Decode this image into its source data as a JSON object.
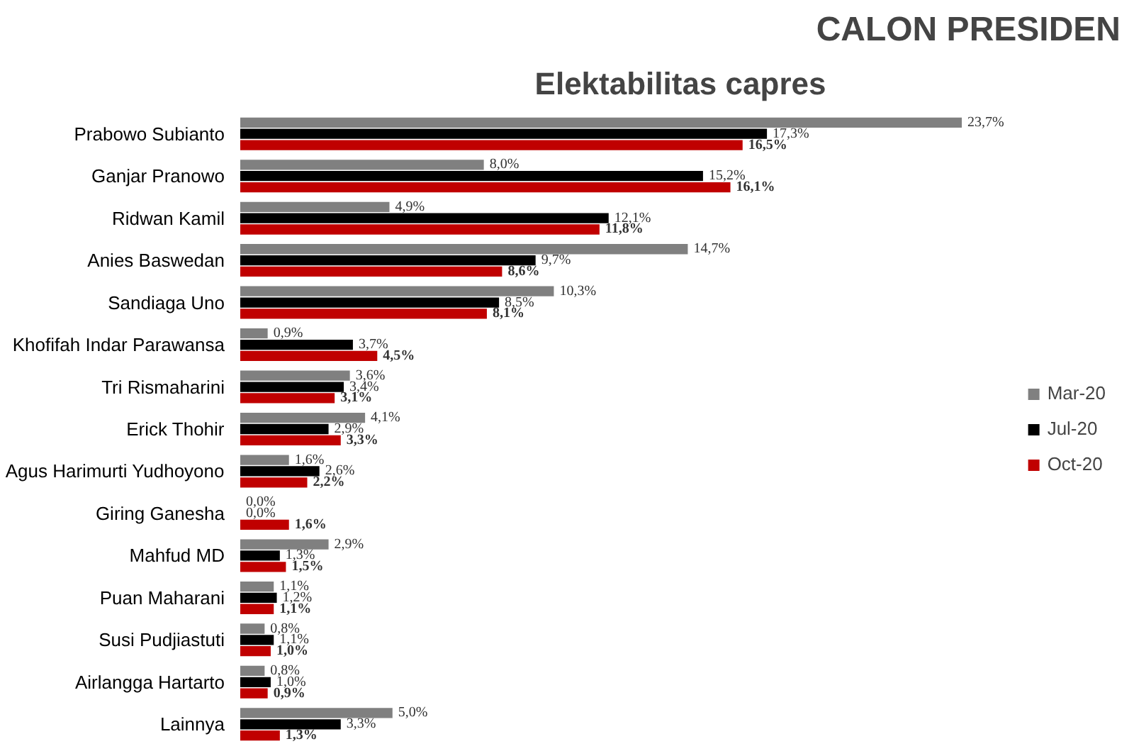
{
  "chart_data": {
    "type": "bar",
    "orientation": "horizontal",
    "title": "CALON PRESIDEN",
    "subtitle": "Elektabilitas capres",
    "categories": [
      "Prabowo Subianto",
      "Ganjar Pranowo",
      "Ridwan Kamil",
      "Anies Baswedan",
      "Sandiaga Uno",
      "Khofifah Indar Parawansa",
      "Tri Rismaharini",
      "Erick Thohir",
      "Agus Harimurti Yudhoyono",
      "Giring Ganesha",
      "Mahfud MD",
      "Puan Maharani",
      "Susi Pudjiastuti",
      "Airlangga Hartarto",
      "Lainnya"
    ],
    "series": [
      {
        "name": "Mar-20",
        "color": "#808080",
        "values": [
          23.7,
          8.0,
          4.9,
          14.7,
          10.3,
          0.9,
          3.6,
          4.1,
          1.6,
          0.0,
          2.9,
          1.1,
          0.8,
          0.8,
          5.0
        ],
        "value_labels": [
          "23,7%",
          "8,0%",
          "4,9%",
          "14,7%",
          "10,3%",
          "0,9%",
          "3,6%",
          "4,1%",
          "1,6%",
          "0,0%",
          "2,9%",
          "1,1%",
          "0,8%",
          "0,8%",
          "5,0%"
        ]
      },
      {
        "name": "Jul-20",
        "color": "#000000",
        "values": [
          17.3,
          15.2,
          12.1,
          9.7,
          8.5,
          3.7,
          3.4,
          2.9,
          2.6,
          0.0,
          1.3,
          1.2,
          1.1,
          1.0,
          3.3
        ],
        "value_labels": [
          "17,3%",
          "15,2%",
          "12,1%",
          "9,7%",
          "8,5%",
          "3,7%",
          "3,4%",
          "2,9%",
          "2,6%",
          "0,0%",
          "1,3%",
          "1,2%",
          "1,1%",
          "1,0%",
          "3,3%"
        ]
      },
      {
        "name": "Oct-20",
        "color": "#c00000",
        "values": [
          16.5,
          16.1,
          11.8,
          8.6,
          8.1,
          4.5,
          3.1,
          3.3,
          2.2,
          1.6,
          1.5,
          1.1,
          1.0,
          0.9,
          1.3
        ],
        "value_labels": [
          "16,5%",
          "16,1%",
          "11,8%",
          "8,6%",
          "8,1%",
          "4,5%",
          "3,1%",
          "3,3%",
          "2,2%",
          "1,6%",
          "1,5%",
          "1,1%",
          "1,0%",
          "0,9%",
          "1,3%"
        ]
      }
    ],
    "legend": "right",
    "grid": false
  }
}
